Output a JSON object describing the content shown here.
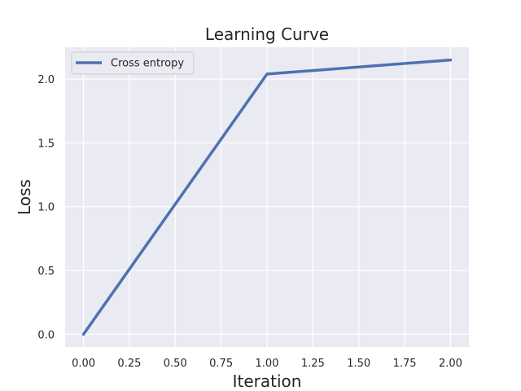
{
  "chart_data": {
    "type": "line",
    "title": "Learning Curve",
    "xlabel": "Iteration",
    "ylabel": "Loss",
    "xlim": [
      -0.1,
      2.1
    ],
    "ylim": [
      -0.1,
      2.25
    ],
    "x_ticks": [
      0.0,
      0.25,
      0.5,
      0.75,
      1.0,
      1.25,
      1.5,
      1.75,
      2.0
    ],
    "x_tick_labels": [
      "0.00",
      "0.25",
      "0.50",
      "0.75",
      "1.00",
      "1.25",
      "1.50",
      "1.75",
      "2.00"
    ],
    "y_ticks": [
      0.0,
      0.5,
      1.0,
      1.5,
      2.0
    ],
    "y_tick_labels": [
      "0.0",
      "0.5",
      "1.0",
      "1.5",
      "2.0"
    ],
    "grid": true,
    "legend_position": "top-left",
    "series": [
      {
        "name": "Cross entropy",
        "x": [
          0,
          1,
          2
        ],
        "y": [
          0.0,
          2.04,
          2.15
        ],
        "color": "#4c72b0"
      }
    ]
  },
  "colors": {
    "plot_background": "#eaeaf2",
    "grid": "#ffffff",
    "text": "#262626"
  }
}
